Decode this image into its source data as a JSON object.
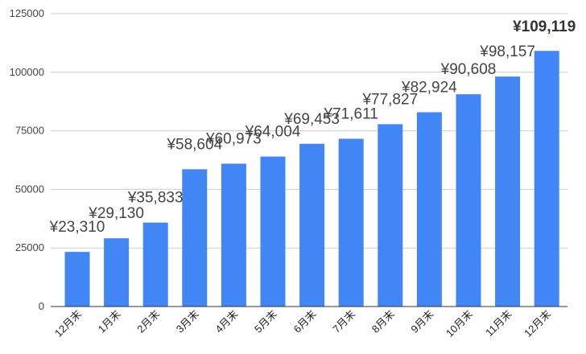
{
  "chart_data": {
    "type": "bar",
    "categories": [
      "12月末",
      "1月末",
      "2月末",
      "3月末",
      "4月末",
      "5月末",
      "6月末",
      "7月末",
      "8月末",
      "9月末",
      "10月末",
      "11月末",
      "12月末"
    ],
    "values": [
      23310,
      29130,
      35833,
      58604,
      60973,
      64004,
      69453,
      71611,
      77827,
      82924,
      90608,
      98157,
      109119
    ],
    "data_labels": [
      "¥23,310",
      "¥29,130",
      "¥35,833",
      "¥58,604",
      "¥60,973",
      "¥64,004",
      "¥69,453",
      "¥71,611",
      "¥77,827",
      "¥82,924",
      "¥90,608",
      "¥98,157",
      "¥109,119"
    ],
    "highlight_index": 12,
    "ylim": [
      0,
      125000
    ],
    "yticks": [
      "0",
      "25000",
      "50000",
      "75000",
      "100000",
      "125000"
    ],
    "ytick_values": [
      0,
      25000,
      50000,
      75000,
      100000,
      125000
    ],
    "bar_color": "#4285f4",
    "grid": true,
    "legend": "none"
  }
}
